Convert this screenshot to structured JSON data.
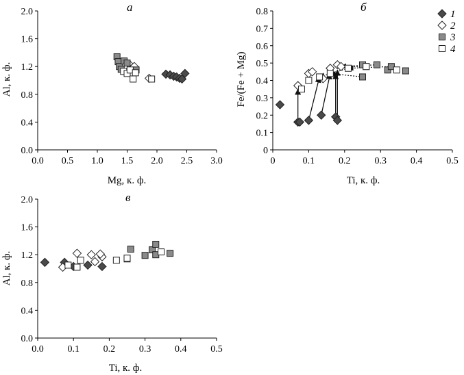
{
  "legend": [
    {
      "series": 1,
      "label": "1",
      "marker": "diamond-filled"
    },
    {
      "series": 2,
      "label": "2",
      "marker": "diamond-open"
    },
    {
      "series": 3,
      "label": "3",
      "marker": "square-filled"
    },
    {
      "series": 4,
      "label": "4",
      "marker": "square-open"
    }
  ],
  "colors": {
    "series1_fill": "#4a4a4a",
    "series3_fill": "#8a8a8a",
    "open_fill": "#ffffff",
    "stroke": "#222222"
  },
  "chart_data": [
    {
      "type": "scatter",
      "panel_label": "а",
      "xlabel": "Mg, к. ф.",
      "ylabel": "Al, к. ф.",
      "xlim": [
        0.0,
        3.0
      ],
      "ylim": [
        0.0,
        2.0
      ],
      "xticks": [
        "0.0",
        "0.5",
        "1.0",
        "1.5",
        "2.0",
        "2.5",
        "3.0"
      ],
      "yticks": [
        "0.0",
        "0.4",
        "0.8",
        "1.2",
        "1.6",
        "2.0"
      ],
      "series": [
        {
          "name": "1",
          "points": [
            [
              2.15,
              1.09
            ],
            [
              2.22,
              1.08
            ],
            [
              2.28,
              1.06
            ],
            [
              2.33,
              1.05
            ],
            [
              2.38,
              1.03
            ],
            [
              2.42,
              1.02
            ],
            [
              2.47,
              1.1
            ]
          ]
        },
        {
          "name": "2",
          "points": [
            [
              1.42,
              1.21
            ],
            [
              1.48,
              1.18
            ],
            [
              1.52,
              1.14
            ],
            [
              1.55,
              1.22
            ],
            [
              1.58,
              1.17
            ],
            [
              1.62,
              1.2
            ],
            [
              1.87,
              1.03
            ]
          ]
        },
        {
          "name": "3",
          "points": [
            [
              1.33,
              1.34
            ],
            [
              1.35,
              1.27
            ],
            [
              1.37,
              1.2
            ],
            [
              1.4,
              1.16
            ],
            [
              1.45,
              1.28
            ],
            [
              1.5,
              1.25
            ],
            [
              1.65,
              1.15
            ]
          ]
        },
        {
          "name": "4",
          "points": [
            [
              1.44,
              1.13
            ],
            [
              1.5,
              1.1
            ],
            [
              1.55,
              1.15
            ],
            [
              1.6,
              1.02
            ],
            [
              1.64,
              1.11
            ],
            [
              1.91,
              1.02
            ]
          ]
        }
      ]
    },
    {
      "type": "scatter",
      "panel_label": "б",
      "xlabel": "Ti, к. ф.",
      "ylabel": "Fe/(Fe + Mg)",
      "xlim": [
        0.0,
        0.5
      ],
      "ylim": [
        0.0,
        0.8
      ],
      "xticks": [
        "0",
        "0.1",
        "0.2",
        "0.3",
        "0.4",
        "0.5"
      ],
      "yticks": [
        "0",
        "0.1",
        "0.2",
        "0.3",
        "0.4",
        "0.5",
        "0.6",
        "0.7",
        "0.8"
      ],
      "series": [
        {
          "name": "1",
          "points": [
            [
              0.02,
              0.26
            ],
            [
              0.07,
              0.16
            ],
            [
              0.075,
              0.16
            ],
            [
              0.1,
              0.17
            ],
            [
              0.135,
              0.2
            ],
            [
              0.175,
              0.19
            ],
            [
              0.18,
              0.17
            ]
          ]
        },
        {
          "name": "2",
          "points": [
            [
              0.07,
              0.37
            ],
            [
              0.1,
              0.44
            ],
            [
              0.11,
              0.45
            ],
            [
              0.14,
              0.41
            ],
            [
              0.16,
              0.47
            ],
            [
              0.18,
              0.49
            ],
            [
              0.19,
              0.48
            ]
          ]
        },
        {
          "name": "3",
          "points": [
            [
              0.25,
              0.42
            ],
            [
              0.26,
              0.48
            ],
            [
              0.29,
              0.49
            ],
            [
              0.32,
              0.46
            ],
            [
              0.33,
              0.48
            ],
            [
              0.37,
              0.455
            ],
            [
              0.25,
              0.49
            ]
          ]
        },
        {
          "name": "4",
          "points": [
            [
              0.08,
              0.35
            ],
            [
              0.1,
              0.4
            ],
            [
              0.13,
              0.42
            ],
            [
              0.16,
              0.44
            ],
            [
              0.21,
              0.47
            ],
            [
              0.26,
              0.48
            ],
            [
              0.345,
              0.46
            ]
          ]
        }
      ],
      "arrows": [
        {
          "from": [
            0.07,
            0.16
          ],
          "to": [
            0.07,
            0.35
          ]
        },
        {
          "from": [
            0.1,
            0.17
          ],
          "to": [
            0.13,
            0.42
          ]
        },
        {
          "from": [
            0.135,
            0.2
          ],
          "to": [
            0.16,
            0.44
          ]
        },
        {
          "from": [
            0.175,
            0.19
          ],
          "to": [
            0.175,
            0.44
          ]
        },
        {
          "from": [
            0.18,
            0.17
          ],
          "to": [
            0.18,
            0.46
          ]
        }
      ],
      "dotted_arrows": [
        {
          "from": [
            0.26,
            0.48
          ],
          "to": [
            0.18,
            0.48
          ]
        },
        {
          "from": [
            0.33,
            0.48
          ],
          "to": [
            0.21,
            0.47
          ]
        },
        {
          "from": [
            0.21,
            0.47
          ],
          "to": [
            0.13,
            0.42
          ]
        },
        {
          "from": [
            0.25,
            0.42
          ],
          "to": [
            0.16,
            0.44
          ]
        },
        {
          "from": [
            0.29,
            0.49
          ],
          "to": [
            0.19,
            0.48
          ]
        }
      ]
    },
    {
      "type": "scatter",
      "panel_label": "в",
      "xlabel": "Ti, к. ф.",
      "ylabel": "Al, к. ф.",
      "xlim": [
        0.0,
        0.5
      ],
      "ylim": [
        0.0,
        2.0
      ],
      "xticks": [
        "0.0",
        "0.1",
        "0.2",
        "0.3",
        "0.4",
        "0.5"
      ],
      "yticks": [
        "0.0",
        "0.4",
        "0.8",
        "1.2",
        "1.6",
        "2.0"
      ],
      "series": [
        {
          "name": "1",
          "points": [
            [
              0.02,
              1.09
            ],
            [
              0.075,
              1.09
            ],
            [
              0.1,
              1.03
            ],
            [
              0.14,
              1.05
            ],
            [
              0.18,
              1.03
            ]
          ]
        },
        {
          "name": "2",
          "points": [
            [
              0.07,
              1.02
            ],
            [
              0.11,
              1.22
            ],
            [
              0.15,
              1.2
            ],
            [
              0.16,
              1.1
            ],
            [
              0.18,
              1.17
            ],
            [
              0.175,
              1.21
            ]
          ]
        },
        {
          "name": "3",
          "points": [
            [
              0.25,
              1.14
            ],
            [
              0.26,
              1.28
            ],
            [
              0.3,
              1.19
            ],
            [
              0.32,
              1.27
            ],
            [
              0.33,
              1.35
            ],
            [
              0.33,
              1.2
            ],
            [
              0.37,
              1.22
            ]
          ]
        },
        {
          "name": "4",
          "points": [
            [
              0.085,
              1.05
            ],
            [
              0.11,
              1.02
            ],
            [
              0.12,
              1.12
            ],
            [
              0.22,
              1.12
            ],
            [
              0.25,
              1.15
            ],
            [
              0.345,
              1.24
            ]
          ]
        }
      ]
    }
  ]
}
